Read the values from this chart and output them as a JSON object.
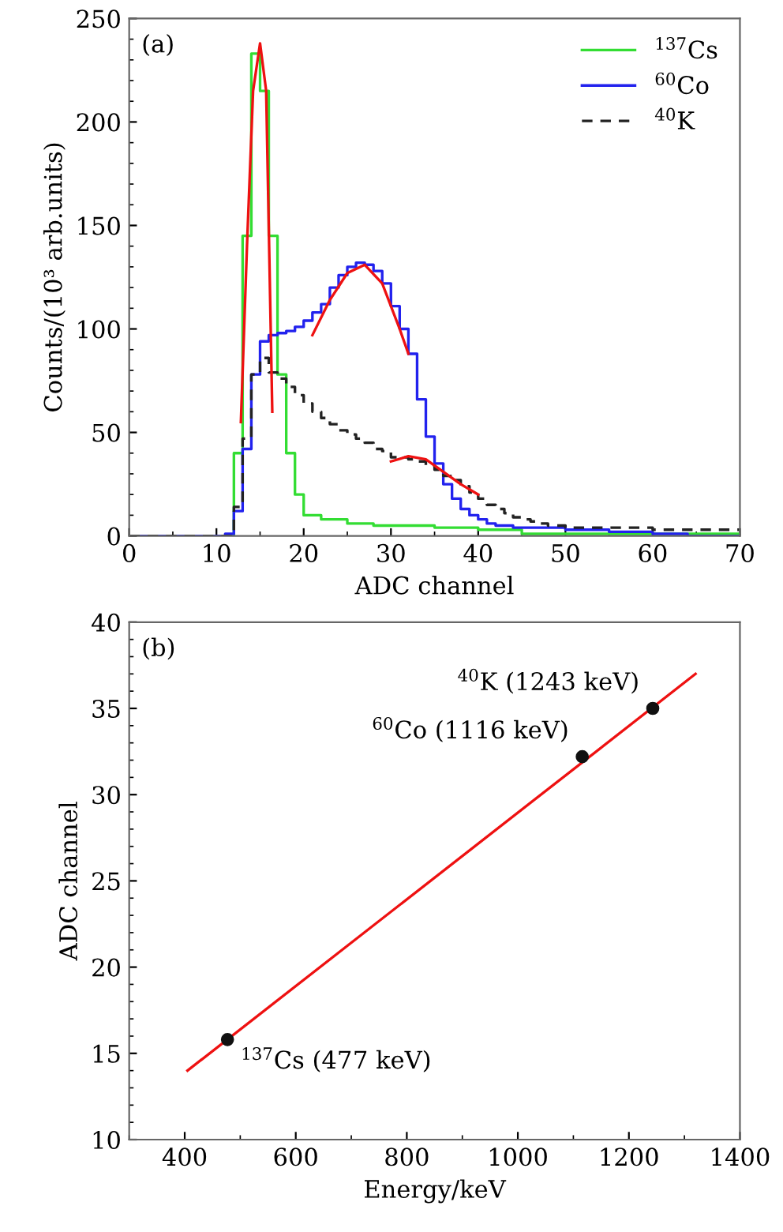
{
  "chart_data": [
    {
      "type": "step",
      "xlabel": "ADC channel",
      "ylabel": "Counts/(10³ arb.units)",
      "xlim": [
        0,
        70
      ],
      "ylim": [
        0,
        250
      ],
      "xticks": [
        0,
        10,
        20,
        30,
        40,
        50,
        60,
        70
      ],
      "yticks": [
        0,
        50,
        100,
        150,
        200,
        250
      ],
      "legend": "top right",
      "grid": false,
      "annotations": [
        "(a)"
      ],
      "series": [
        {
          "name": "$^{137}$Cs",
          "color": "#33dd33",
          "line_style": "solid",
          "x": [
            0,
            11,
            12,
            13,
            14,
            15,
            16,
            17,
            18,
            19,
            20,
            22,
            25,
            28,
            30,
            35,
            40,
            45,
            50,
            60,
            70
          ],
          "values": [
            0,
            0,
            40,
            145,
            233,
            215,
            145,
            78,
            40,
            20,
            10,
            8,
            6,
            5,
            5,
            4,
            3,
            1,
            1,
            1,
            1
          ]
        },
        {
          "name": "$^{60}$Co",
          "color": "#2222ee",
          "line_style": "solid",
          "x": [
            0,
            11,
            12,
            13,
            14,
            15,
            16,
            17,
            18,
            19,
            20,
            21,
            22,
            23,
            24,
            25,
            26,
            27,
            28,
            29,
            30,
            31,
            32,
            33,
            34,
            35,
            36,
            37,
            38,
            39,
            40,
            41,
            42,
            44,
            46,
            50,
            55,
            60,
            64,
            70
          ],
          "values": [
            0,
            1,
            12,
            42,
            78,
            94,
            97,
            98,
            99,
            101,
            104,
            108,
            112,
            120,
            126,
            130,
            132,
            131,
            128,
            122,
            111,
            100,
            88,
            66,
            48,
            35,
            25,
            18,
            13,
            10,
            8,
            6,
            5,
            4,
            4,
            3,
            2,
            1,
            0,
            0
          ]
        },
        {
          "name": "$^{40}$K",
          "color": "#222222",
          "line_style": "dashed",
          "x": [
            0,
            12,
            13,
            14,
            15,
            16,
            17,
            18,
            19,
            20,
            21,
            22,
            23,
            24,
            25,
            26,
            27,
            28,
            29,
            30,
            31,
            32,
            33,
            34,
            35,
            36,
            37,
            38,
            39,
            40,
            41,
            42,
            43,
            44,
            45,
            46,
            47,
            48,
            50,
            55,
            60,
            65,
            70
          ],
          "values": [
            0,
            14,
            47,
            78,
            86,
            79,
            76,
            72,
            68,
            64,
            60,
            57,
            54,
            51,
            49,
            47,
            45,
            42,
            41,
            38,
            38,
            37,
            36,
            34,
            32,
            29,
            27,
            24,
            21,
            18,
            15,
            13,
            11,
            9,
            8,
            7,
            6,
            5,
            4,
            4,
            3,
            3,
            3
          ]
        },
        {
          "type": "line",
          "color": "#ee1111",
          "line_style": "solid",
          "x": [
            12.8,
            13.5,
            14.2,
            15,
            15.7,
            16.4
          ],
          "values": [
            55,
            140,
            215,
            238,
            215,
            60
          ]
        },
        {
          "type": "line",
          "color": "#ee1111",
          "line_style": "solid",
          "x": [
            21,
            23,
            25,
            27,
            29,
            31,
            32
          ],
          "values": [
            97,
            114,
            127,
            131,
            122,
            100,
            88
          ]
        },
        {
          "type": "line",
          "color": "#ee1111",
          "line_style": "solid",
          "x": [
            30,
            32,
            34,
            36,
            38,
            40
          ],
          "values": [
            36,
            38.5,
            37,
            31,
            25,
            20
          ]
        }
      ]
    },
    {
      "type": "scatter",
      "xlabel": "Energy/keV",
      "ylabel": "ADC channel",
      "xlim": [
        300,
        1400
      ],
      "ylim": [
        10,
        40
      ],
      "xticks": [
        400,
        600,
        800,
        1000,
        1200,
        1400
      ],
      "yticks": [
        10,
        15,
        20,
        25,
        30,
        35,
        40
      ],
      "grid": false,
      "annotations": [
        "(b)",
        {
          "text": "$^{137}$Cs (477 keV)",
          "x": 477,
          "y": 15.8
        },
        {
          "text": "$^{60}$Co (1116 keV)",
          "x": 1116,
          "y": 32.2
        },
        {
          "text": "$^{40}$K (1243 keV)",
          "x": 1243,
          "y": 35
        }
      ],
      "series": [
        {
          "color": "#111111",
          "marker": "circle",
          "x": [
            477,
            1116,
            1243
          ],
          "values": [
            15.8,
            32.2,
            35
          ]
        },
        {
          "type": "line",
          "color": "#ee1111",
          "line_style": "solid",
          "x": [
            405,
            1320
          ],
          "values": [
            14,
            37
          ]
        }
      ]
    }
  ]
}
